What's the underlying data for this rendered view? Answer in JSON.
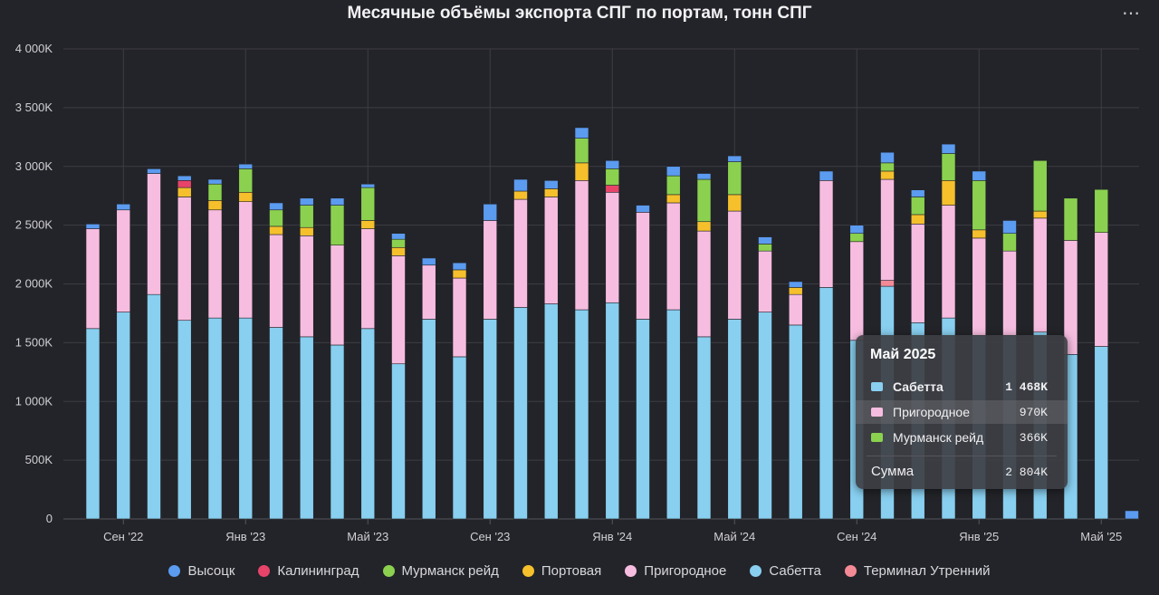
{
  "title": "Месячные объёмы экспорта СПГ по портам, тонн СПГ",
  "menu_icon": "⋯",
  "legend": [
    {
      "name": "Высоцк",
      "color": "#5b9bf0"
    },
    {
      "name": "Калининград",
      "color": "#e8446a"
    },
    {
      "name": "Мурманск рейд",
      "color": "#8bd14f"
    },
    {
      "name": "Портовая",
      "color": "#f5c02c"
    },
    {
      "name": "Пригородное",
      "color": "#f7bde0"
    },
    {
      "name": "Сабетта",
      "color": "#88cff0"
    },
    {
      "name": "Терминал Утренний",
      "color": "#f58a97"
    }
  ],
  "tooltip": {
    "title": "Май 2025",
    "rows": [
      {
        "name": "Сабетта",
        "value": "1 468K",
        "color": "#88cff0",
        "bold": true
      },
      {
        "name": "Пригородное",
        "value": "970K",
        "color": "#f7bde0",
        "bold": false
      },
      {
        "name": "Мурманск рейд",
        "value": "366K",
        "color": "#8bd14f",
        "bold": false
      }
    ],
    "sum_label": "Сумма",
    "sum_value": "2 804K"
  },
  "chart_data": {
    "type": "bar",
    "stacked": true,
    "title": "Месячные объёмы экспорта СПГ по портам, тонн СПГ",
    "ylim": [
      0,
      4000000
    ],
    "yticks": [
      0,
      500000,
      1000000,
      1500000,
      2000000,
      2500000,
      3000000,
      3500000,
      4000000
    ],
    "ytick_labels": [
      "0",
      "500K",
      "1 000K",
      "1 500K",
      "2 000K",
      "2 500K",
      "3 000K",
      "3 500K",
      "4 000K"
    ],
    "xtick_labels": [
      {
        "label": "Сен '22",
        "index": 1
      },
      {
        "label": "Янв '23",
        "index": 5
      },
      {
        "label": "Май '23",
        "index": 9
      },
      {
        "label": "Сен '23",
        "index": 13
      },
      {
        "label": "Янв '24",
        "index": 17
      },
      {
        "label": "Май '24",
        "index": 21
      },
      {
        "label": "Сен '24",
        "index": 25
      },
      {
        "label": "Янв '25",
        "index": 29
      },
      {
        "label": "Май '25",
        "index": 33
      }
    ],
    "grid": true,
    "legend_position": "bottom",
    "series_order": [
      "Сабетта",
      "Терминал Утренний",
      "Пригородное",
      "Портовая",
      "Калининград",
      "Мурманск рейд",
      "Высоцк"
    ],
    "series": [
      {
        "name": "Сабетта",
        "color": "#88cff0",
        "values": [
          1620000,
          1760000,
          1910000,
          1690000,
          1710000,
          1710000,
          1630000,
          1550000,
          1480000,
          1620000,
          1320000,
          1700000,
          1380000,
          1700000,
          1800000,
          1830000,
          1780000,
          1840000,
          1700000,
          1780000,
          1550000,
          1700000,
          1760000,
          1650000,
          1970000,
          1520000,
          1980000,
          1670000,
          1710000,
          1560000,
          1560000,
          1590000,
          1400000,
          1468000,
          0
        ]
      },
      {
        "name": "Терминал Утренний",
        "color": "#f58a97",
        "values": [
          0,
          0,
          0,
          0,
          0,
          0,
          0,
          0,
          0,
          0,
          0,
          0,
          0,
          0,
          0,
          0,
          0,
          0,
          0,
          0,
          0,
          0,
          0,
          0,
          0,
          0,
          50000,
          0,
          0,
          0,
          0,
          0,
          0,
          0,
          0
        ]
      },
      {
        "name": "Пригородное",
        "color": "#f7bde0",
        "values": [
          850000,
          870000,
          1030000,
          1050000,
          920000,
          990000,
          790000,
          860000,
          850000,
          850000,
          920000,
          460000,
          670000,
          840000,
          920000,
          910000,
          1100000,
          940000,
          910000,
          910000,
          900000,
          920000,
          520000,
          260000,
          910000,
          840000,
          860000,
          840000,
          960000,
          830000,
          720000,
          970000,
          970000,
          970000,
          0
        ]
      },
      {
        "name": "Портовая",
        "color": "#f5c02c",
        "values": [
          0,
          0,
          0,
          80000,
          80000,
          80000,
          70000,
          70000,
          0,
          70000,
          70000,
          0,
          70000,
          0,
          70000,
          70000,
          150000,
          0,
          0,
          70000,
          80000,
          140000,
          0,
          60000,
          0,
          0,
          70000,
          80000,
          210000,
          70000,
          0,
          60000,
          0,
          0,
          0
        ]
      },
      {
        "name": "Калининград",
        "color": "#e8446a",
        "values": [
          0,
          0,
          0,
          60000,
          0,
          0,
          0,
          0,
          0,
          0,
          0,
          0,
          0,
          0,
          0,
          0,
          0,
          60000,
          0,
          0,
          0,
          0,
          0,
          0,
          0,
          0,
          0,
          0,
          0,
          0,
          0,
          0,
          0,
          0,
          0
        ]
      },
      {
        "name": "Мурманск рейд",
        "color": "#8bd14f",
        "values": [
          0,
          0,
          0,
          0,
          140000,
          200000,
          140000,
          190000,
          340000,
          280000,
          70000,
          0,
          0,
          0,
          0,
          0,
          210000,
          140000,
          0,
          160000,
          360000,
          280000,
          60000,
          0,
          0,
          70000,
          70000,
          150000,
          230000,
          420000,
          150000,
          430000,
          360000,
          366000,
          0
        ]
      },
      {
        "name": "Высоцк",
        "color": "#5b9bf0",
        "values": [
          40000,
          50000,
          40000,
          40000,
          40000,
          40000,
          60000,
          60000,
          60000,
          30000,
          50000,
          60000,
          60000,
          140000,
          100000,
          70000,
          90000,
          70000,
          60000,
          80000,
          50000,
          50000,
          60000,
          50000,
          80000,
          70000,
          90000,
          60000,
          80000,
          80000,
          110000,
          0,
          0,
          0,
          70000
        ]
      }
    ]
  }
}
